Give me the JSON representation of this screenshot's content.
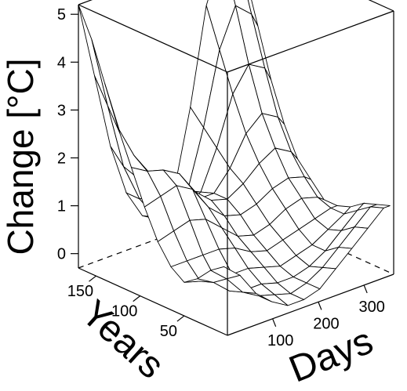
{
  "chart_data": {
    "type": "surface3d",
    "title": "",
    "xlabel": "Days",
    "ylabel": "Years",
    "zlabel": "Change [°C]",
    "x_range": [
      1,
      365
    ],
    "y_range": [
      1,
      170
    ],
    "z_range": [
      -0.3,
      5.2
    ],
    "x_ticks": [
      "100",
      "200",
      "300"
    ],
    "y_ticks": [
      "50",
      "100",
      "150"
    ],
    "z_ticks": [
      "0",
      "1",
      "2",
      "3",
      "4",
      "5"
    ],
    "grid": "mesh",
    "x": [
      1,
      36,
      71,
      106,
      141,
      176,
      211,
      246,
      281,
      316,
      351,
      365
    ],
    "y": [
      170,
      155,
      140,
      125,
      110,
      95,
      80,
      65,
      50,
      35,
      20,
      5
    ],
    "z": [
      [
        5.2,
        3.6,
        2.0,
        0.9,
        0.3,
        0.1,
        0.6,
        2.2,
        4.2,
        5.2,
        4.9,
        4.6
      ],
      [
        4.6,
        3.1,
        1.7,
        0.9,
        0.4,
        0.3,
        0.7,
        1.9,
        3.4,
        4.2,
        3.9,
        3.6
      ],
      [
        3.8,
        2.6,
        1.6,
        1.1,
        0.7,
        0.6,
        0.8,
        1.6,
        2.6,
        3.1,
        2.9,
        2.6
      ],
      [
        3.0,
        2.3,
        1.8,
        1.5,
        1.1,
        0.9,
        0.9,
        1.3,
        1.9,
        2.2,
        2.0,
        1.8
      ],
      [
        2.3,
        2.1,
        2.0,
        1.8,
        1.3,
        1.0,
        0.9,
        1.1,
        1.4,
        1.6,
        1.4,
        1.2
      ],
      [
        1.6,
        1.7,
        1.8,
        1.6,
        1.1,
        0.8,
        0.7,
        0.8,
        1.0,
        1.1,
        1.0,
        0.9
      ],
      [
        1.0,
        1.1,
        1.2,
        1.1,
        0.8,
        0.5,
        0.4,
        0.5,
        0.7,
        0.8,
        0.7,
        0.6
      ],
      [
        0.6,
        0.6,
        0.6,
        0.6,
        0.5,
        0.3,
        0.2,
        0.3,
        0.4,
        0.5,
        0.6,
        0.6
      ],
      [
        0.4,
        0.3,
        0.2,
        0.2,
        0.2,
        0.1,
        0.0,
        0.1,
        0.2,
        0.4,
        0.6,
        0.7
      ],
      [
        0.6,
        0.4,
        0.1,
        0.0,
        0.0,
        -0.1,
        -0.1,
        0.0,
        0.2,
        0.5,
        0.8,
        0.9
      ],
      [
        0.9,
        0.6,
        0.2,
        0.0,
        -0.1,
        -0.2,
        -0.1,
        0.1,
        0.4,
        0.7,
        1.0,
        1.0
      ],
      [
        1.1,
        0.8,
        0.3,
        0.0,
        -0.2,
        -0.2,
        -0.1,
        0.2,
        0.5,
        0.8,
        1.1,
        1.1
      ]
    ]
  }
}
